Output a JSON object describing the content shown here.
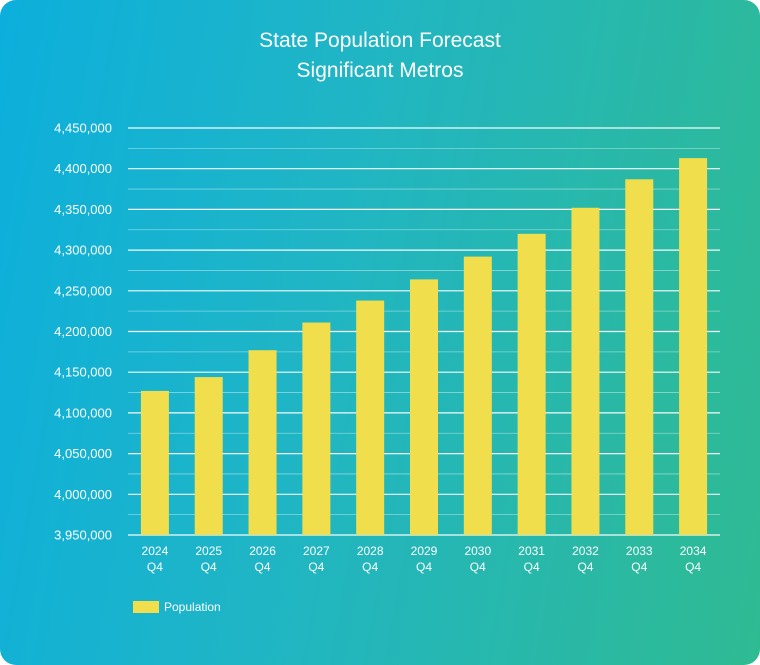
{
  "title_line1": "State Population Forecast",
  "title_line2": "Significant Metros",
  "chart_data": {
    "type": "bar",
    "categories": [
      [
        "2024",
        "Q4"
      ],
      [
        "2025",
        "Q4"
      ],
      [
        "2026",
        "Q4"
      ],
      [
        "2027",
        "Q4"
      ],
      [
        "2028",
        "Q4"
      ],
      [
        "2029",
        "Q4"
      ],
      [
        "2030",
        "Q4"
      ],
      [
        "2031",
        "Q4"
      ],
      [
        "2032",
        "Q4"
      ],
      [
        "2033",
        "Q4"
      ],
      [
        "2034",
        "Q4"
      ]
    ],
    "series": [
      {
        "name": "Population",
        "values": [
          4127000,
          4144000,
          4177000,
          4211000,
          4238000,
          4264000,
          4292000,
          4320000,
          4352000,
          4387000,
          4413000
        ]
      }
    ],
    "ylim": [
      3950000,
      4450000
    ],
    "yticks": [
      "4,450,000",
      "4,400,000",
      "4,350,000",
      "4,300,000",
      "4,250,000",
      "4,200,000",
      "4,150,000",
      "4,100,000",
      "4,050,000",
      "4,000,000",
      "3,950,000"
    ],
    "ytick_values": [
      4450000,
      4400000,
      4350000,
      4300000,
      4250000,
      4200000,
      4150000,
      4100000,
      4050000,
      4000000,
      3950000
    ],
    "grid": true,
    "legend_position": "bottom-left",
    "bar_color": "#f0de4c",
    "grid_color": "#ffffff"
  }
}
